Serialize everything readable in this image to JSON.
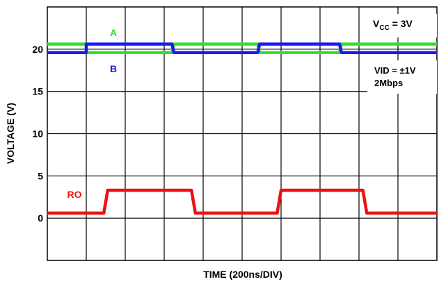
{
  "chart_data": {
    "type": "line",
    "title": "",
    "xlabel": "TIME (200ns/DIV)",
    "ylabel": "VOLTAGE (V)",
    "ylim": [
      -5,
      25
    ],
    "xlim": [
      0,
      10
    ],
    "grid": true,
    "y_ticks": [
      "0",
      "5",
      "10",
      "15",
      "20"
    ],
    "y_tick_values": [
      0,
      5,
      10,
      15,
      20
    ],
    "series": [
      {
        "name": "A",
        "color": "#33dd33",
        "points": [
          [
            0,
            20.6
          ],
          [
            1,
            20.6
          ],
          [
            1.0,
            19.6
          ],
          [
            3.2,
            19.6
          ],
          [
            3.25,
            20.6
          ],
          [
            5.4,
            20.6
          ],
          [
            5.45,
            19.6
          ],
          [
            7.5,
            19.6
          ],
          [
            7.55,
            20.6
          ],
          [
            10,
            20.6
          ]
        ]
      },
      {
        "name": "B",
        "color": "#1a1aee",
        "points": [
          [
            0,
            19.6
          ],
          [
            1,
            19.6
          ],
          [
            1.0,
            20.6
          ],
          [
            3.2,
            20.6
          ],
          [
            3.25,
            19.6
          ],
          [
            5.4,
            19.6
          ],
          [
            5.45,
            20.6
          ],
          [
            7.5,
            20.6
          ],
          [
            7.55,
            19.6
          ],
          [
            10,
            19.6
          ]
        ]
      },
      {
        "name": "RO",
        "color": "#ee1111",
        "points": [
          [
            0,
            0.6
          ],
          [
            1.45,
            0.6
          ],
          [
            1.55,
            3.3
          ],
          [
            3.7,
            3.3
          ],
          [
            3.8,
            0.6
          ],
          [
            5.9,
            0.6
          ],
          [
            6.0,
            3.3
          ],
          [
            8.1,
            3.3
          ],
          [
            8.2,
            0.6
          ],
          [
            10,
            0.6
          ]
        ]
      }
    ],
    "annotations": {
      "vcc_main": "V",
      "vcc_sub": "CC",
      "vcc_rest": " = 3V",
      "vid": "VID = ±1V",
      "rate": "2Mbps"
    }
  }
}
